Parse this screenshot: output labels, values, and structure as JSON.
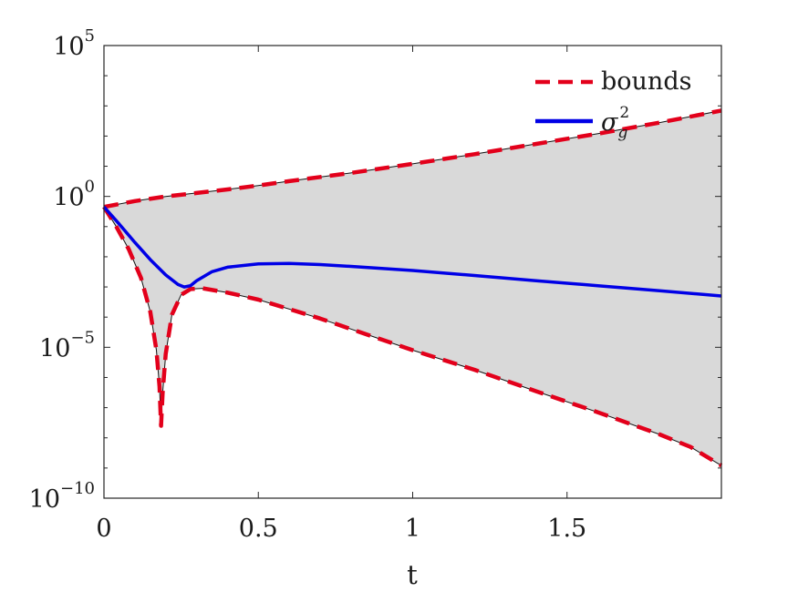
{
  "chart_data": {
    "type": "area",
    "title": "",
    "xlabel": "t",
    "ylabel": "",
    "y_scale": "log10",
    "xlim": [
      0,
      2
    ],
    "ylim": [
      1e-10,
      100000.0
    ],
    "grid": false,
    "legend_placement": "top-right",
    "x_ticks": [
      {
        "value": 0,
        "label": "0"
      },
      {
        "value": 0.5,
        "label": "0.5"
      },
      {
        "value": 1,
        "label": "1"
      },
      {
        "value": 1.5,
        "label": "1.5"
      }
    ],
    "y_ticks": [
      {
        "value": 100000.0,
        "base": "10",
        "exp": "5"
      },
      {
        "value": 1,
        "base": "10",
        "exp": "0"
      },
      {
        "value": 1e-05,
        "base": "10",
        "exp": "−5"
      },
      {
        "value": 1e-10,
        "base": "10",
        "exp": "−10"
      }
    ],
    "shaded_region": {
      "between": [
        "upper bound",
        "lower bound"
      ],
      "color": "#d9d9d9"
    },
    "legend": [
      {
        "label": "bounds",
        "style": "dashed",
        "color": "#e3001b"
      },
      {
        "label": "σ",
        "sub": "g",
        "sup": "2",
        "style": "solid",
        "color": "#0000e6"
      }
    ],
    "series": [
      {
        "role": "upper-bound",
        "legend_ref": "bounds",
        "color": "#e3001b",
        "style": "dashed",
        "x": [
          0,
          0.1,
          0.2,
          0.3,
          0.4,
          0.5,
          0.6,
          0.8,
          1.0,
          1.2,
          1.4,
          1.6,
          1.8,
          2.0
        ],
        "y": [
          0.45,
          0.7,
          1.0,
          1.3,
          1.7,
          2.3,
          3.2,
          6.0,
          12,
          25,
          55,
          120,
          280,
          700
        ]
      },
      {
        "role": "lower-bound",
        "legend_ref": "bounds",
        "color": "#e3001b",
        "style": "dashed",
        "x": [
          0,
          0.04,
          0.08,
          0.12,
          0.15,
          0.17,
          0.18,
          0.185,
          0.19,
          0.2,
          0.22,
          0.25,
          0.28,
          0.32,
          0.4,
          0.5,
          0.7,
          0.9,
          1.0,
          1.2,
          1.4,
          1.6,
          1.8,
          1.9,
          2.0
        ],
        "y": [
          0.45,
          0.1,
          0.018,
          0.002,
          0.00015,
          8e-06,
          5e-07,
          2.5e-08,
          3e-07,
          6e-06,
          0.00012,
          0.00055,
          0.00085,
          0.0009,
          0.00065,
          0.00038,
          9e-05,
          1.8e-05,
          8e-06,
          1.8e-06,
          3.5e-07,
          7e-08,
          1.3e-08,
          5e-09,
          1.2e-09
        ]
      },
      {
        "role": "variance",
        "legend_ref": "σ",
        "color": "#0000e6",
        "style": "solid",
        "x": [
          0,
          0.05,
          0.1,
          0.15,
          0.2,
          0.24,
          0.26,
          0.28,
          0.3,
          0.35,
          0.4,
          0.5,
          0.6,
          0.7,
          0.8,
          1.0,
          1.2,
          1.4,
          1.6,
          1.8,
          2.0
        ],
        "y": [
          0.45,
          0.12,
          0.03,
          0.008,
          0.0025,
          0.0012,
          0.001,
          0.0011,
          0.0016,
          0.0032,
          0.0045,
          0.0058,
          0.006,
          0.0055,
          0.0048,
          0.0035,
          0.0024,
          0.0016,
          0.0011,
          0.00075,
          0.0005
        ]
      }
    ]
  }
}
